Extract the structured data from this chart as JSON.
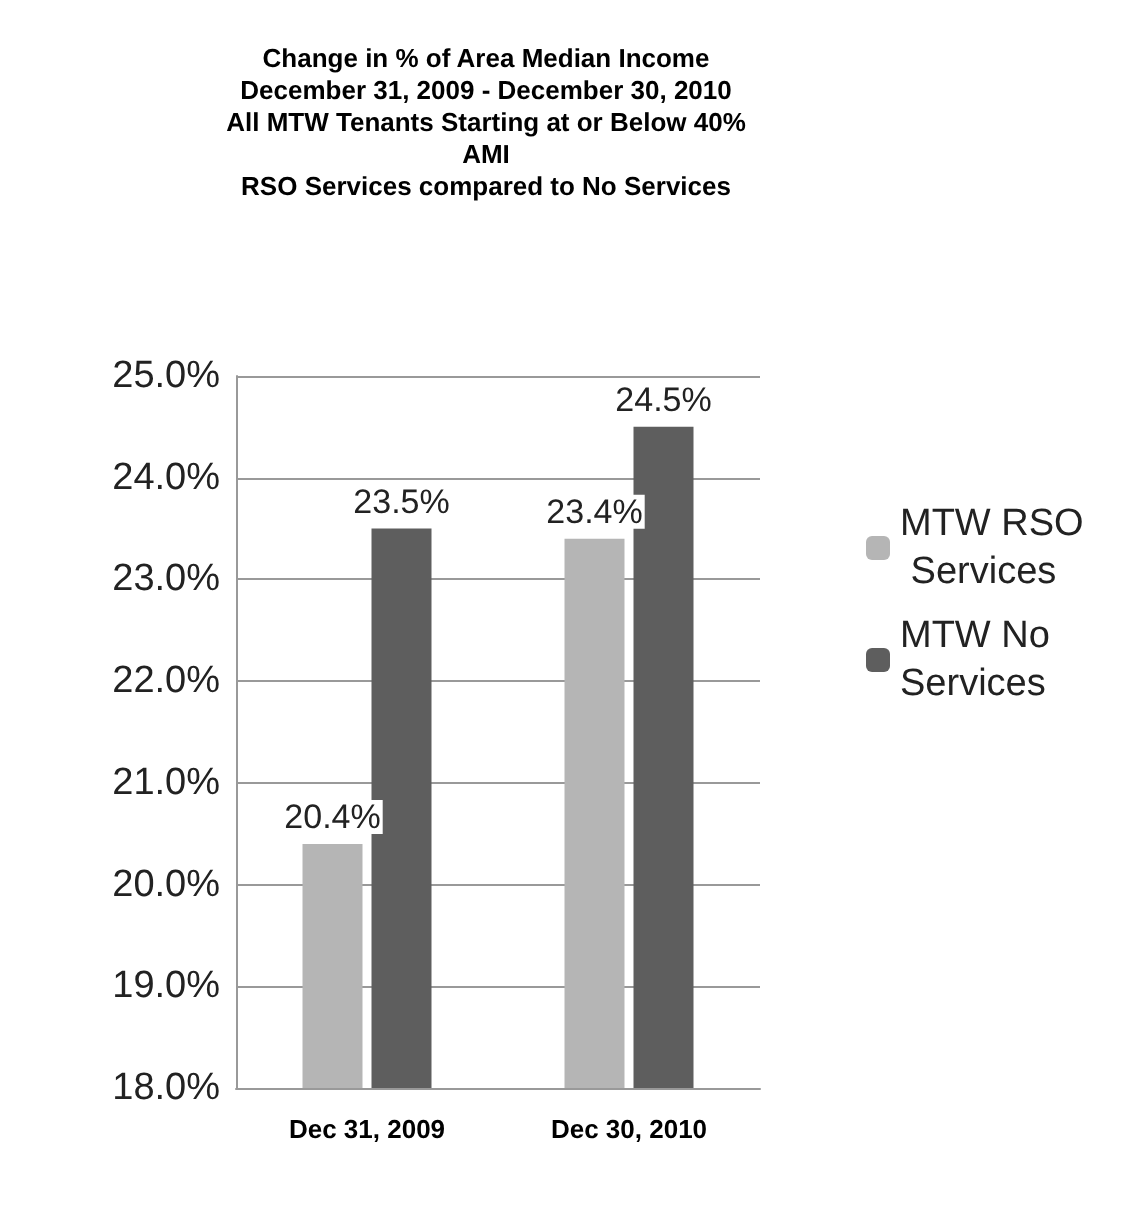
{
  "chart_data": {
    "type": "bar",
    "title": "Change in % of Area Median Income\nDecember 31, 2009 - December 30, 2010\nAll MTW Tenants Starting at or Below 40%\nAMI\nRSO Services compared to No Services",
    "categories": [
      "Dec 31, 2009",
      "Dec 30, 2010"
    ],
    "series": [
      {
        "name": "MTW RSO Services",
        "color": "#b5b5b5",
        "values": [
          20.4,
          23.4
        ],
        "value_labels": [
          "20.4%",
          "23.4%"
        ]
      },
      {
        "name": "MTW No Services",
        "color": "#5e5e5e",
        "values": [
          23.5,
          24.5
        ],
        "value_labels": [
          "23.5%",
          "24.5%"
        ]
      }
    ],
    "ylim": [
      18,
      25
    ],
    "yticks": [
      {
        "value": 18,
        "label": "18.0%"
      },
      {
        "value": 19,
        "label": "19.0%"
      },
      {
        "value": 20,
        "label": "20.0%"
      },
      {
        "value": 21,
        "label": "21.0%"
      },
      {
        "value": 22,
        "label": "22.0%"
      },
      {
        "value": 23,
        "label": "23.0%"
      },
      {
        "value": 24,
        "label": "24.0%"
      },
      {
        "value": 25,
        "label": "25.0%"
      }
    ],
    "grid": "y",
    "legend": "right"
  }
}
